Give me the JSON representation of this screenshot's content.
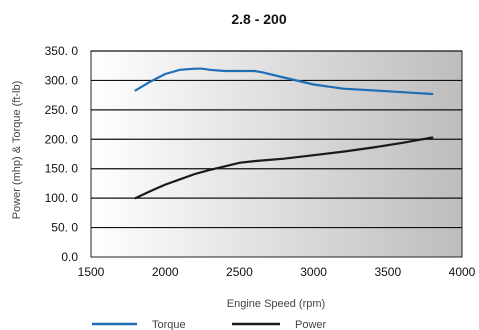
{
  "chart_data": {
    "type": "line",
    "title": "2.8 - 200",
    "xlabel": "Engine Speed (rpm)",
    "ylabel": "Power (mhp) & Torque (ft-lb)",
    "xlim": [
      1500,
      4000
    ],
    "ylim": [
      0,
      350
    ],
    "x_ticks": [
      "1500",
      "2000",
      "2500",
      "3000",
      "3500",
      "4000"
    ],
    "y_ticks": [
      "0.0",
      "50. 0",
      "100. 0",
      "150. 0",
      "200. 0",
      "250. 0",
      "300. 0",
      "350. 0"
    ],
    "grid": "horizontal",
    "legend_position": "bottom",
    "series": [
      {
        "name": "Torque",
        "color": "#1f6fb5",
        "points": [
          [
            1800,
            283
          ],
          [
            1900,
            298
          ],
          [
            2000,
            311
          ],
          [
            2100,
            318
          ],
          [
            2200,
            320
          ],
          [
            2250,
            320
          ],
          [
            2300,
            318
          ],
          [
            2400,
            316
          ],
          [
            2500,
            316
          ],
          [
            2600,
            316
          ],
          [
            2650,
            314
          ],
          [
            2800,
            305
          ],
          [
            3000,
            293
          ],
          [
            3200,
            286
          ],
          [
            3400,
            283
          ],
          [
            3600,
            280
          ],
          [
            3800,
            277
          ]
        ]
      },
      {
        "name": "Power",
        "color": "#1a1a1a",
        "points": [
          [
            1800,
            100
          ],
          [
            1900,
            112
          ],
          [
            2000,
            123
          ],
          [
            2100,
            132
          ],
          [
            2200,
            141
          ],
          [
            2300,
            148
          ],
          [
            2400,
            154
          ],
          [
            2500,
            160
          ],
          [
            2600,
            163
          ],
          [
            2800,
            167
          ],
          [
            3000,
            173
          ],
          [
            3200,
            179
          ],
          [
            3400,
            186
          ],
          [
            3600,
            194
          ],
          [
            3800,
            203
          ]
        ]
      }
    ]
  }
}
